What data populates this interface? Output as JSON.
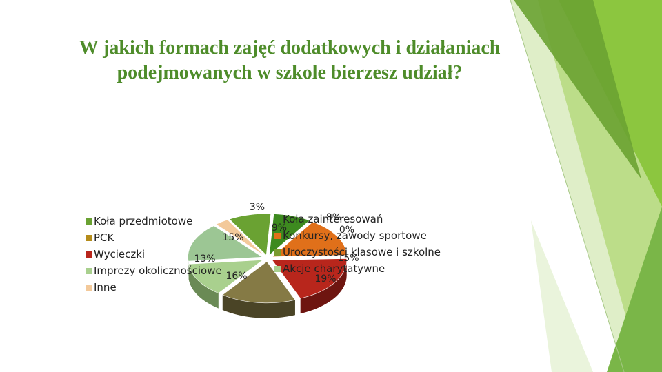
{
  "title": {
    "line1": "W jakich formach zajęć dodatkowych i działaniach",
    "line2": "podejmowanych w szkole bierzesz udział?"
  },
  "colors": {
    "title": "#4e8c2a",
    "accent_green": "#7ab648",
    "accent_light": "#c4e09a"
  },
  "chart_data": {
    "type": "pie",
    "style": "3d-exploded",
    "title": "",
    "slices": [
      {
        "name": "Koła zainteresowań",
        "value": 8,
        "label": "8%",
        "color": "#3d8a1f",
        "side": "#255512"
      },
      {
        "name": "Konkursy, zawody sportowe",
        "value": 15,
        "label": "15%",
        "color": "#e0701a",
        "side": "#8a430e"
      },
      {
        "name": "Uroczystości klasowe i szkolne",
        "value": 0,
        "label": "0%",
        "color": "#7a9a2e",
        "side": "#4b5e1c"
      },
      {
        "name": "Akcje charytatywne",
        "value": 19,
        "label": "19%",
        "color": "#b8261c",
        "side": "#6e1510"
      },
      {
        "name": "Koła przedmiotowe",
        "value": 16,
        "label": "16%",
        "color": "#857a45",
        "side": "#4a4426"
      },
      {
        "name": "PCK",
        "value": 13,
        "label": "13%",
        "color": "#a9d08e",
        "side": "#6a8a55"
      },
      {
        "name": "Wycieczki",
        "value": 15,
        "label": "15%",
        "color": "#9cc694",
        "side": "#5f7e59"
      },
      {
        "name": "Imprezy okolicznościowe",
        "value": 0,
        "label": "",
        "color": "#a9d08e",
        "side": "#6a8a55"
      },
      {
        "name": "Inne",
        "value": 3,
        "label": "3%",
        "color": "#f3c99a",
        "side": "#a88763"
      },
      {
        "name": "",
        "value": 9,
        "label": "9%",
        "color": "#6aa232",
        "side": "#41661c"
      }
    ],
    "legend_left": [
      {
        "label": "Koła przedmiotowe",
        "color": "#6aa232"
      },
      {
        "label": "PCK",
        "color": "#b58c1a"
      },
      {
        "label": "Wycieczki",
        "color": "#b8261c"
      },
      {
        "label": "Imprezy okolicznościowe",
        "color": "#a9d08e"
      },
      {
        "label": "Inne",
        "color": "#f3c99a"
      }
    ],
    "legend_right": [
      {
        "label": "Koła zainteresowań",
        "color": "#3d8a1f"
      },
      {
        "label": "Konkursy, zawody sportowe",
        "color": "#e0701a"
      },
      {
        "label": "Uroczystości klasowe i szkolne",
        "color": "#7a9a2e"
      },
      {
        "label": "Akcje charytatywne",
        "color": "#a9d08e"
      }
    ]
  }
}
